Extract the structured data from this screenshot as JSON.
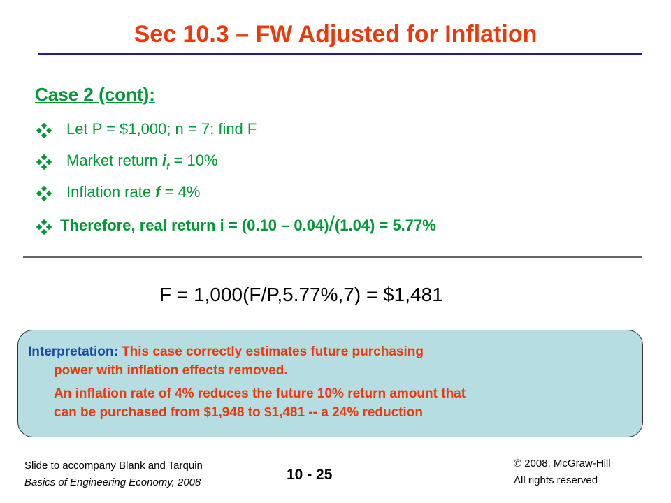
{
  "header": {
    "title": "Sec 10.3 – FW Adjusted for Inflation"
  },
  "case": {
    "heading": "Case 2 (cont):",
    "bullets": [
      {
        "parts": [
          "Let P = $1,000; n = 7; find F"
        ]
      },
      {
        "parts": [
          "Market return ",
          "i",
          "f",
          " = 10%"
        ]
      },
      {
        "parts": [
          "Inflation rate ",
          "f",
          " = 4%"
        ]
      },
      {
        "parts": [
          "Therefore, real return i = (0.10 – 0.04)",
          "/",
          "(1.04) = 5.77%"
        ]
      }
    ]
  },
  "formula": "F = 1,000(F/P,5.77%,7) = $1,481",
  "interpretation": {
    "label": "Interpretation:",
    "text_lines": [
      "This case correctly estimates future purchasing",
      "power with inflation effects removed."
    ],
    "note_lines": [
      "An inflation rate of 4% reduces the future 10% return amount that",
      "can be purchased from $1,948 to $1,481 -- a 24% reduction"
    ]
  },
  "footer": {
    "left": [
      "Slide to accompany Blank and Tarquin",
      "Basics of Engineering Economy, 2008"
    ],
    "page": "10 - 25",
    "right": [
      "© 2008, McGraw-Hill",
      "All rights reserved"
    ]
  }
}
